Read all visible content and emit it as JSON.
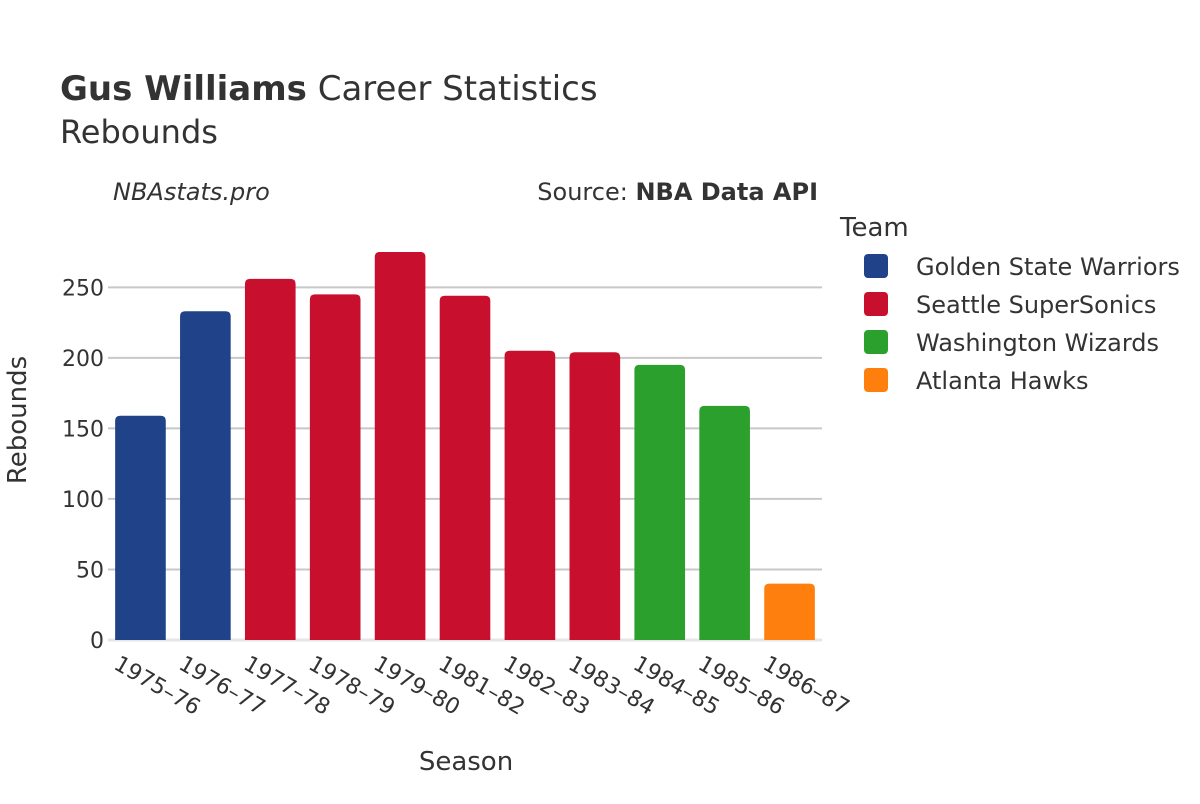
{
  "header": {
    "player_name": "Gus Williams",
    "title_rest": " Career Statistics",
    "subtitle": "Rebounds",
    "watermark": "NBAstats.pro",
    "source_prefix": "Source: ",
    "source_name": "NBA Data API"
  },
  "legend": {
    "title": "Team",
    "items": [
      {
        "label": "Golden State Warriors",
        "color": "#1f4289"
      },
      {
        "label": "Seattle SuperSonics",
        "color": "#c8102e"
      },
      {
        "label": "Washington Wizards",
        "color": "#2ca02c"
      },
      {
        "label": "Atlanta Hawks",
        "color": "#ff7f0e"
      }
    ]
  },
  "chart_data": {
    "type": "bar",
    "xlabel": "Season",
    "ylabel": "Rebounds",
    "ylim": [
      0,
      280
    ],
    "yticks": [
      0,
      50,
      100,
      150,
      200,
      250
    ],
    "grid": true,
    "legend_placement": "right",
    "categories": [
      "1975–76",
      "1976–77",
      "1977–78",
      "1978–79",
      "1979–80",
      "1981–82",
      "1982–83",
      "1983–84",
      "1984–85",
      "1985–86",
      "1986–87"
    ],
    "values": [
      159,
      233,
      256,
      245,
      275,
      244,
      205,
      204,
      195,
      166,
      40
    ],
    "teams": [
      "Golden State Warriors",
      "Golden State Warriors",
      "Seattle SuperSonics",
      "Seattle SuperSonics",
      "Seattle SuperSonics",
      "Seattle SuperSonics",
      "Seattle SuperSonics",
      "Seattle SuperSonics",
      "Washington Wizards",
      "Washington Wizards",
      "Atlanta Hawks"
    ]
  }
}
